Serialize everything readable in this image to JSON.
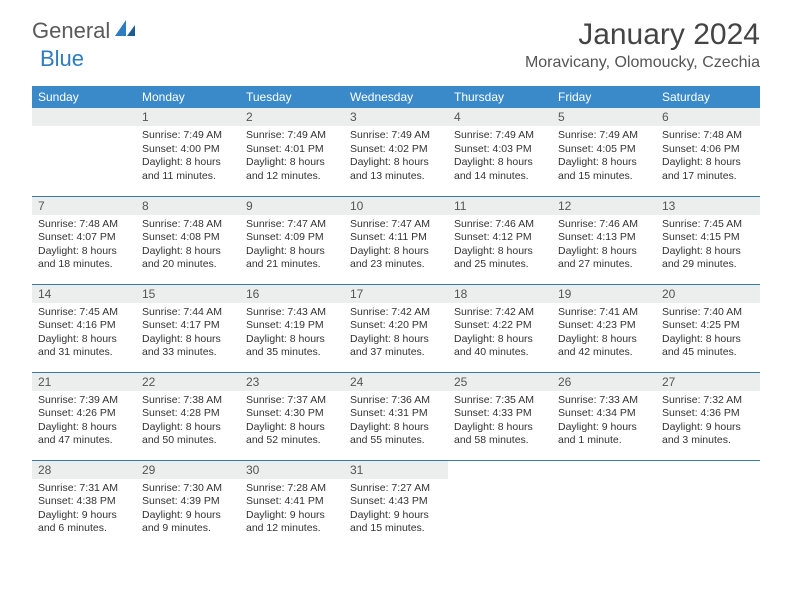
{
  "logo": {
    "general": "General",
    "blue": "Blue"
  },
  "title": "January 2024",
  "location": "Moravicany, Olomoucky, Czechia",
  "colors": {
    "header_bg": "#3a8ac9",
    "header_text": "#ffffff",
    "daynum_bg": "#eceded",
    "daynum_text": "#555555",
    "border": "#3a7aad",
    "logo_blue": "#2d7bc0",
    "logo_gray": "#5a5a5a"
  },
  "day_names": [
    "Sunday",
    "Monday",
    "Tuesday",
    "Wednesday",
    "Thursday",
    "Friday",
    "Saturday"
  ],
  "weeks": [
    [
      {
        "n": "",
        "l1": "",
        "l2": "",
        "l3": "",
        "l4": ""
      },
      {
        "n": "1",
        "l1": "Sunrise: 7:49 AM",
        "l2": "Sunset: 4:00 PM",
        "l3": "Daylight: 8 hours",
        "l4": "and 11 minutes."
      },
      {
        "n": "2",
        "l1": "Sunrise: 7:49 AM",
        "l2": "Sunset: 4:01 PM",
        "l3": "Daylight: 8 hours",
        "l4": "and 12 minutes."
      },
      {
        "n": "3",
        "l1": "Sunrise: 7:49 AM",
        "l2": "Sunset: 4:02 PM",
        "l3": "Daylight: 8 hours",
        "l4": "and 13 minutes."
      },
      {
        "n": "4",
        "l1": "Sunrise: 7:49 AM",
        "l2": "Sunset: 4:03 PM",
        "l3": "Daylight: 8 hours",
        "l4": "and 14 minutes."
      },
      {
        "n": "5",
        "l1": "Sunrise: 7:49 AM",
        "l2": "Sunset: 4:05 PM",
        "l3": "Daylight: 8 hours",
        "l4": "and 15 minutes."
      },
      {
        "n": "6",
        "l1": "Sunrise: 7:48 AM",
        "l2": "Sunset: 4:06 PM",
        "l3": "Daylight: 8 hours",
        "l4": "and 17 minutes."
      }
    ],
    [
      {
        "n": "7",
        "l1": "Sunrise: 7:48 AM",
        "l2": "Sunset: 4:07 PM",
        "l3": "Daylight: 8 hours",
        "l4": "and 18 minutes."
      },
      {
        "n": "8",
        "l1": "Sunrise: 7:48 AM",
        "l2": "Sunset: 4:08 PM",
        "l3": "Daylight: 8 hours",
        "l4": "and 20 minutes."
      },
      {
        "n": "9",
        "l1": "Sunrise: 7:47 AM",
        "l2": "Sunset: 4:09 PM",
        "l3": "Daylight: 8 hours",
        "l4": "and 21 minutes."
      },
      {
        "n": "10",
        "l1": "Sunrise: 7:47 AM",
        "l2": "Sunset: 4:11 PM",
        "l3": "Daylight: 8 hours",
        "l4": "and 23 minutes."
      },
      {
        "n": "11",
        "l1": "Sunrise: 7:46 AM",
        "l2": "Sunset: 4:12 PM",
        "l3": "Daylight: 8 hours",
        "l4": "and 25 minutes."
      },
      {
        "n": "12",
        "l1": "Sunrise: 7:46 AM",
        "l2": "Sunset: 4:13 PM",
        "l3": "Daylight: 8 hours",
        "l4": "and 27 minutes."
      },
      {
        "n": "13",
        "l1": "Sunrise: 7:45 AM",
        "l2": "Sunset: 4:15 PM",
        "l3": "Daylight: 8 hours",
        "l4": "and 29 minutes."
      }
    ],
    [
      {
        "n": "14",
        "l1": "Sunrise: 7:45 AM",
        "l2": "Sunset: 4:16 PM",
        "l3": "Daylight: 8 hours",
        "l4": "and 31 minutes."
      },
      {
        "n": "15",
        "l1": "Sunrise: 7:44 AM",
        "l2": "Sunset: 4:17 PM",
        "l3": "Daylight: 8 hours",
        "l4": "and 33 minutes."
      },
      {
        "n": "16",
        "l1": "Sunrise: 7:43 AM",
        "l2": "Sunset: 4:19 PM",
        "l3": "Daylight: 8 hours",
        "l4": "and 35 minutes."
      },
      {
        "n": "17",
        "l1": "Sunrise: 7:42 AM",
        "l2": "Sunset: 4:20 PM",
        "l3": "Daylight: 8 hours",
        "l4": "and 37 minutes."
      },
      {
        "n": "18",
        "l1": "Sunrise: 7:42 AM",
        "l2": "Sunset: 4:22 PM",
        "l3": "Daylight: 8 hours",
        "l4": "and 40 minutes."
      },
      {
        "n": "19",
        "l1": "Sunrise: 7:41 AM",
        "l2": "Sunset: 4:23 PM",
        "l3": "Daylight: 8 hours",
        "l4": "and 42 minutes."
      },
      {
        "n": "20",
        "l1": "Sunrise: 7:40 AM",
        "l2": "Sunset: 4:25 PM",
        "l3": "Daylight: 8 hours",
        "l4": "and 45 minutes."
      }
    ],
    [
      {
        "n": "21",
        "l1": "Sunrise: 7:39 AM",
        "l2": "Sunset: 4:26 PM",
        "l3": "Daylight: 8 hours",
        "l4": "and 47 minutes."
      },
      {
        "n": "22",
        "l1": "Sunrise: 7:38 AM",
        "l2": "Sunset: 4:28 PM",
        "l3": "Daylight: 8 hours",
        "l4": "and 50 minutes."
      },
      {
        "n": "23",
        "l1": "Sunrise: 7:37 AM",
        "l2": "Sunset: 4:30 PM",
        "l3": "Daylight: 8 hours",
        "l4": "and 52 minutes."
      },
      {
        "n": "24",
        "l1": "Sunrise: 7:36 AM",
        "l2": "Sunset: 4:31 PM",
        "l3": "Daylight: 8 hours",
        "l4": "and 55 minutes."
      },
      {
        "n": "25",
        "l1": "Sunrise: 7:35 AM",
        "l2": "Sunset: 4:33 PM",
        "l3": "Daylight: 8 hours",
        "l4": "and 58 minutes."
      },
      {
        "n": "26",
        "l1": "Sunrise: 7:33 AM",
        "l2": "Sunset: 4:34 PM",
        "l3": "Daylight: 9 hours",
        "l4": "and 1 minute."
      },
      {
        "n": "27",
        "l1": "Sunrise: 7:32 AM",
        "l2": "Sunset: 4:36 PM",
        "l3": "Daylight: 9 hours",
        "l4": "and 3 minutes."
      }
    ],
    [
      {
        "n": "28",
        "l1": "Sunrise: 7:31 AM",
        "l2": "Sunset: 4:38 PM",
        "l3": "Daylight: 9 hours",
        "l4": "and 6 minutes."
      },
      {
        "n": "29",
        "l1": "Sunrise: 7:30 AM",
        "l2": "Sunset: 4:39 PM",
        "l3": "Daylight: 9 hours",
        "l4": "and 9 minutes."
      },
      {
        "n": "30",
        "l1": "Sunrise: 7:28 AM",
        "l2": "Sunset: 4:41 PM",
        "l3": "Daylight: 9 hours",
        "l4": "and 12 minutes."
      },
      {
        "n": "31",
        "l1": "Sunrise: 7:27 AM",
        "l2": "Sunset: 4:43 PM",
        "l3": "Daylight: 9 hours",
        "l4": "and 15 minutes."
      },
      {
        "n": "",
        "l1": "",
        "l2": "",
        "l3": "",
        "l4": ""
      },
      {
        "n": "",
        "l1": "",
        "l2": "",
        "l3": "",
        "l4": ""
      },
      {
        "n": "",
        "l1": "",
        "l2": "",
        "l3": "",
        "l4": ""
      }
    ]
  ]
}
